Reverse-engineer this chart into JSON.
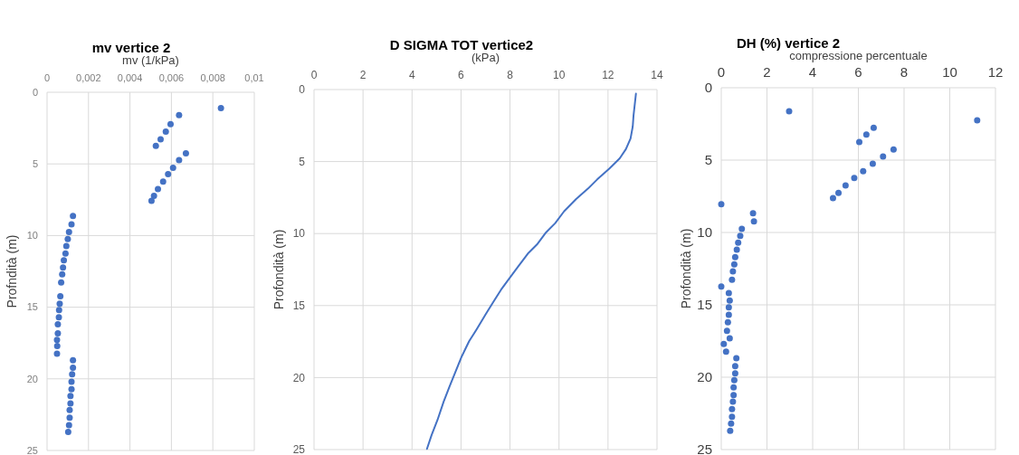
{
  "chart_data": [
    {
      "type": "scatter",
      "title": "mv vertice 2",
      "xlabel": "mv (1/kPa)",
      "ylabel": "Profndità (m)",
      "xlim": [
        0,
        0.01
      ],
      "xticks": [
        0,
        {
          "value": 0.002,
          "label": "0,002"
        },
        {
          "value": 0.004,
          "label": "0,004"
        },
        {
          "value": 0.006,
          "label": "0,006"
        },
        {
          "value": 0.008,
          "label": "0,008"
        },
        {
          "value": 0.01,
          "label": "0,01"
        }
      ],
      "ylim": [
        25,
        0
      ],
      "yticks": [
        0,
        5,
        10,
        15,
        20,
        25
      ],
      "grid": true,
      "marker": "circle",
      "series": [
        {
          "color": "#4472c4",
          "x": [
            0.00839,
            0.00637,
            0.00596,
            0.00573,
            0.00548,
            0.00525,
            0.0067,
            0.00637,
            0.00608,
            0.00584,
            0.0056,
            0.00535,
            0.00516,
            0.00504,
            0.00125,
            0.00118,
            0.00106,
            0.001,
            0.00093,
            0.00089,
            0.00081,
            0.00077,
            0.00073,
            0.00068,
            0.00064,
            0.00061,
            0.00058,
            0.00057,
            0.00052,
            0.00052,
            0.00048,
            0.00049,
            0.00048,
            0.00125,
            0.00125,
            0.00121,
            0.00118,
            0.00118,
            0.00113,
            0.00113,
            0.00109,
            0.00109,
            0.00106,
            0.00102
          ],
          "values": [
            1.11,
            1.6,
            2.23,
            2.75,
            3.28,
            3.74,
            4.26,
            4.73,
            5.27,
            5.71,
            6.24,
            6.76,
            7.23,
            7.58,
            8.63,
            9.22,
            9.75,
            10.25,
            10.74,
            11.26,
            11.72,
            12.23,
            12.71,
            13.28,
            14.23,
            14.75,
            15.2,
            15.71,
            16.2,
            16.83,
            17.29,
            17.71,
            18.24,
            18.7,
            19.22,
            19.68,
            20.2,
            20.73,
            21.2,
            21.72,
            22.18,
            22.71,
            23.24,
            23.7
          ]
        }
      ]
    },
    {
      "type": "line",
      "title": "D SIGMA TOT vertice2",
      "xlabel": "(kPa)",
      "ylabel": "Profondità (m)",
      "xlim": [
        0,
        14
      ],
      "xticks": [
        0,
        2,
        4,
        6,
        8,
        10,
        12,
        14
      ],
      "ylim": [
        25,
        0
      ],
      "yticks": [
        0,
        5,
        10,
        15,
        20,
        25
      ],
      "grid": true,
      "marker": "none",
      "line_style": "solid",
      "series": [
        {
          "color": "#4472c4",
          "x": [
            13.14,
            13.04,
            13.01,
            12.92,
            12.73,
            12.48,
            12.05,
            11.56,
            11.19,
            10.7,
            10.21,
            9.84,
            9.47,
            9.1,
            8.73,
            8.36,
            7.99,
            7.63,
            7.32,
            7.01,
            6.64,
            6.33,
            6.03,
            5.78,
            5.53,
            5.29,
            5.04,
            4.8,
            4.61
          ],
          "values": [
            0.29,
            1.83,
            2.56,
            3.4,
            4.14,
            4.77,
            5.5,
            6.24,
            6.87,
            7.6,
            8.45,
            9.29,
            9.92,
            10.76,
            11.39,
            12.23,
            13.07,
            13.91,
            14.75,
            15.59,
            16.64,
            17.48,
            18.53,
            19.58,
            20.63,
            21.68,
            22.94,
            23.99,
            24.95
          ]
        }
      ]
    },
    {
      "type": "scatter",
      "title": "DH (%) vertice 2",
      "xlabel": "compressione percentuale",
      "ylabel": "Profondità (m)",
      "xlim": [
        0,
        12
      ],
      "xticks": [
        0,
        2,
        4,
        6,
        8,
        10,
        12
      ],
      "ylim": [
        25,
        0
      ],
      "yticks": [
        0,
        5,
        10,
        15,
        20,
        25
      ],
      "grid": true,
      "marker": "circle",
      "series": [
        {
          "color": "#4472c4",
          "x": [
            2.97,
            11.2,
            6.67,
            6.35,
            6.04,
            7.54,
            7.08,
            6.63,
            6.21,
            5.82,
            5.44,
            5.13,
            4.89,
            0,
            1.39,
            1.43,
            0.9,
            0.83,
            0.74,
            0.68,
            0.61,
            0.57,
            0.51,
            0.47,
            0,
            0.33,
            0.37,
            0.33,
            0.33,
            0.29,
            0.25,
            0.37,
            0.11,
            0.21,
            0.66,
            0.61,
            0.61,
            0.57,
            0.54,
            0.54,
            0.51,
            0.47,
            0.47,
            0.43,
            0.39
          ],
          "values": [
            1.63,
            2.25,
            2.77,
            3.23,
            3.75,
            4.27,
            4.75,
            5.25,
            5.77,
            6.23,
            6.75,
            7.27,
            7.63,
            8.04,
            8.67,
            9.23,
            9.75,
            10.24,
            10.7,
            11.19,
            11.71,
            12.2,
            12.69,
            13.27,
            13.73,
            14.19,
            14.71,
            15.17,
            15.69,
            16.21,
            16.79,
            17.31,
            17.71,
            18.23,
            18.69,
            19.23,
            19.73,
            20.21,
            20.71,
            21.23,
            21.69,
            22.21,
            22.73,
            23.21,
            23.71
          ]
        }
      ]
    }
  ]
}
